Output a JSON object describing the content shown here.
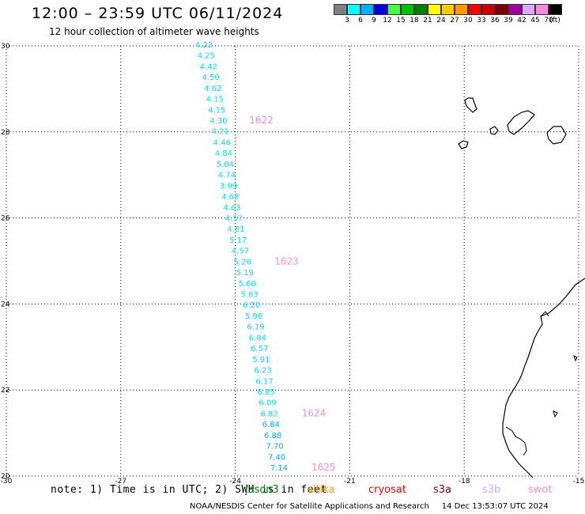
{
  "title": "12:00 – 23:59 UTC 06/11/2024",
  "subtitle": "12 hour collection of altimeter wave heights",
  "legend": {
    "labels": [
      "3",
      "6",
      "9",
      "12",
      "15",
      "18",
      "21",
      "24",
      "27",
      "30",
      "33",
      "36",
      "39",
      "42",
      "45",
      "70"
    ],
    "unit": "(ft)",
    "colors": [
      "#808080",
      "#00ffff",
      "#00b0ff",
      "#0000e0",
      "#40ff40",
      "#00c000",
      "#008000",
      "#ffff00",
      "#ffcc00",
      "#ff9900",
      "#ff0000",
      "#cc0000",
      "#800000",
      "#a000a0",
      "#d8a8ff",
      "#ff88dd",
      "#000000"
    ]
  },
  "map": {
    "lat_labels": [
      "30",
      "28",
      "26",
      "24",
      "22",
      "20"
    ],
    "lon_labels": [
      "-30",
      "-27",
      "-24",
      "-21",
      "-18",
      "-15"
    ],
    "lat_range": [
      20,
      30
    ],
    "lon_range": [
      -30,
      -15
    ],
    "grid": "dotted",
    "land_color": "#000000"
  },
  "track_points": [
    {
      "label": "4.22",
      "color": "#00e0ff"
    },
    {
      "label": "4.25",
      "color": "#00e0ff"
    },
    {
      "label": "4.42",
      "color": "#00e0ff"
    },
    {
      "label": "4.50",
      "color": "#00e0ff"
    },
    {
      "label": "4.62",
      "color": "#00e0ff"
    },
    {
      "label": "4.15",
      "color": "#00e0ff"
    },
    {
      "label": "4.15",
      "color": "#00e0ff"
    },
    {
      "label": "4.30",
      "color": "#00e0ff"
    },
    {
      "label": "4.21",
      "color": "#00e0ff"
    },
    {
      "label": "4.46",
      "color": "#00e0ff"
    },
    {
      "label": "4.84",
      "color": "#00e0ff"
    },
    {
      "label": "5.04",
      "color": "#00e0ff"
    },
    {
      "label": "4.74",
      "color": "#00e0ff"
    },
    {
      "label": "3.99",
      "color": "#00e0ff"
    },
    {
      "label": "4.68",
      "color": "#00e0ff"
    },
    {
      "label": "4.63",
      "color": "#00e0ff"
    },
    {
      "label": "4.57",
      "color": "#00e0ff"
    },
    {
      "label": "4.81",
      "color": "#00e0ff"
    },
    {
      "label": "5.17",
      "color": "#00e0ff"
    },
    {
      "label": "4.57",
      "color": "#00e0ff"
    },
    {
      "label": "5.26",
      "color": "#00e0ff"
    },
    {
      "label": "5.19",
      "color": "#00e0ff"
    },
    {
      "label": "5.60",
      "color": "#00e0ff"
    },
    {
      "label": "5.63",
      "color": "#00e0ff"
    },
    {
      "label": "6.20",
      "color": "#00e0ff"
    },
    {
      "label": "5.96",
      "color": "#00e0ff"
    },
    {
      "label": "6.19",
      "color": "#00e0ff"
    },
    {
      "label": "6.84",
      "color": "#00e0ff"
    },
    {
      "label": "6.57",
      "color": "#00e0ff"
    },
    {
      "label": "5.91",
      "color": "#00e0ff"
    },
    {
      "label": "6.23",
      "color": "#00e0ff"
    },
    {
      "label": "6.17",
      "color": "#00e0ff"
    },
    {
      "label": "6.85",
      "color": "#00e0ff"
    },
    {
      "label": "6.09",
      "color": "#00e0ff"
    },
    {
      "label": "6.82",
      "color": "#00e0ff"
    },
    {
      "label": "6.84",
      "color": "#00b0ff"
    },
    {
      "label": "6.88",
      "color": "#00b0ff"
    },
    {
      "label": "7.70",
      "color": "#00b0ff"
    },
    {
      "label": "7.40",
      "color": "#00b0ff"
    },
    {
      "label": "7.14",
      "color": "#00b0ff"
    }
  ],
  "time_labels": [
    "1622",
    "1623",
    "1624",
    "1625"
  ],
  "time_label_color": "#ff88dd",
  "footer": {
    "note": "note: 1) Time is in UTC; 2) SWH is in feet",
    "satellites": [
      {
        "name": "jason3",
        "color": "#008000"
      },
      {
        "name": "altika",
        "color": "#ff9900"
      },
      {
        "name": "cryosat",
        "color": "#ff0000"
      },
      {
        "name": "s3a",
        "color": "#800000"
      },
      {
        "name": "s3b",
        "color": "#d8a8ff"
      },
      {
        "name": "swot",
        "color": "#ff88dd"
      }
    ],
    "credit": "NOAA/NESDIS Center for Satellite Applications and Research",
    "timestamp": "14 Dec 13:53:07 UTC 2024"
  }
}
